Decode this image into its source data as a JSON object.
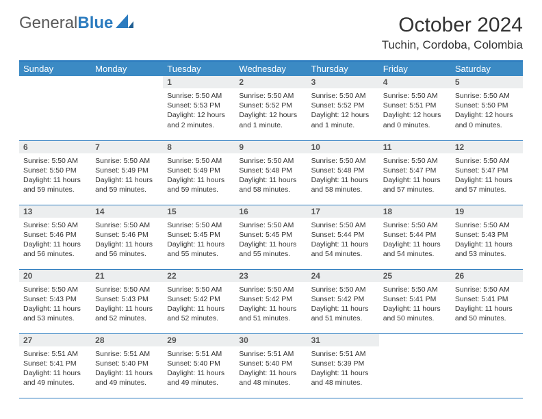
{
  "logo": {
    "word1": "General",
    "word2": "Blue"
  },
  "title": "October 2024",
  "location": "Tuchin, Cordoba, Colombia",
  "colors": {
    "header_bg": "#3b8ac4",
    "header_text": "#ffffff",
    "daynum_bg": "#eceeef",
    "border": "#2b7bbf",
    "page_bg": "#ffffff",
    "text": "#333333"
  },
  "day_names": [
    "Sunday",
    "Monday",
    "Tuesday",
    "Wednesday",
    "Thursday",
    "Friday",
    "Saturday"
  ],
  "weeks": [
    [
      null,
      null,
      {
        "n": "1",
        "sr": "5:50 AM",
        "ss": "5:53 PM",
        "dl": "12 hours and 2 minutes."
      },
      {
        "n": "2",
        "sr": "5:50 AM",
        "ss": "5:52 PM",
        "dl": "12 hours and 1 minute."
      },
      {
        "n": "3",
        "sr": "5:50 AM",
        "ss": "5:52 PM",
        "dl": "12 hours and 1 minute."
      },
      {
        "n": "4",
        "sr": "5:50 AM",
        "ss": "5:51 PM",
        "dl": "12 hours and 0 minutes."
      },
      {
        "n": "5",
        "sr": "5:50 AM",
        "ss": "5:50 PM",
        "dl": "12 hours and 0 minutes."
      }
    ],
    [
      {
        "n": "6",
        "sr": "5:50 AM",
        "ss": "5:50 PM",
        "dl": "11 hours and 59 minutes."
      },
      {
        "n": "7",
        "sr": "5:50 AM",
        "ss": "5:49 PM",
        "dl": "11 hours and 59 minutes."
      },
      {
        "n": "8",
        "sr": "5:50 AM",
        "ss": "5:49 PM",
        "dl": "11 hours and 59 minutes."
      },
      {
        "n": "9",
        "sr": "5:50 AM",
        "ss": "5:48 PM",
        "dl": "11 hours and 58 minutes."
      },
      {
        "n": "10",
        "sr": "5:50 AM",
        "ss": "5:48 PM",
        "dl": "11 hours and 58 minutes."
      },
      {
        "n": "11",
        "sr": "5:50 AM",
        "ss": "5:47 PM",
        "dl": "11 hours and 57 minutes."
      },
      {
        "n": "12",
        "sr": "5:50 AM",
        "ss": "5:47 PM",
        "dl": "11 hours and 57 minutes."
      }
    ],
    [
      {
        "n": "13",
        "sr": "5:50 AM",
        "ss": "5:46 PM",
        "dl": "11 hours and 56 minutes."
      },
      {
        "n": "14",
        "sr": "5:50 AM",
        "ss": "5:46 PM",
        "dl": "11 hours and 56 minutes."
      },
      {
        "n": "15",
        "sr": "5:50 AM",
        "ss": "5:45 PM",
        "dl": "11 hours and 55 minutes."
      },
      {
        "n": "16",
        "sr": "5:50 AM",
        "ss": "5:45 PM",
        "dl": "11 hours and 55 minutes."
      },
      {
        "n": "17",
        "sr": "5:50 AM",
        "ss": "5:44 PM",
        "dl": "11 hours and 54 minutes."
      },
      {
        "n": "18",
        "sr": "5:50 AM",
        "ss": "5:44 PM",
        "dl": "11 hours and 54 minutes."
      },
      {
        "n": "19",
        "sr": "5:50 AM",
        "ss": "5:43 PM",
        "dl": "11 hours and 53 minutes."
      }
    ],
    [
      {
        "n": "20",
        "sr": "5:50 AM",
        "ss": "5:43 PM",
        "dl": "11 hours and 53 minutes."
      },
      {
        "n": "21",
        "sr": "5:50 AM",
        "ss": "5:43 PM",
        "dl": "11 hours and 52 minutes."
      },
      {
        "n": "22",
        "sr": "5:50 AM",
        "ss": "5:42 PM",
        "dl": "11 hours and 52 minutes."
      },
      {
        "n": "23",
        "sr": "5:50 AM",
        "ss": "5:42 PM",
        "dl": "11 hours and 51 minutes."
      },
      {
        "n": "24",
        "sr": "5:50 AM",
        "ss": "5:42 PM",
        "dl": "11 hours and 51 minutes."
      },
      {
        "n": "25",
        "sr": "5:50 AM",
        "ss": "5:41 PM",
        "dl": "11 hours and 50 minutes."
      },
      {
        "n": "26",
        "sr": "5:50 AM",
        "ss": "5:41 PM",
        "dl": "11 hours and 50 minutes."
      }
    ],
    [
      {
        "n": "27",
        "sr": "5:51 AM",
        "ss": "5:41 PM",
        "dl": "11 hours and 49 minutes."
      },
      {
        "n": "28",
        "sr": "5:51 AM",
        "ss": "5:40 PM",
        "dl": "11 hours and 49 minutes."
      },
      {
        "n": "29",
        "sr": "5:51 AM",
        "ss": "5:40 PM",
        "dl": "11 hours and 49 minutes."
      },
      {
        "n": "30",
        "sr": "5:51 AM",
        "ss": "5:40 PM",
        "dl": "11 hours and 48 minutes."
      },
      {
        "n": "31",
        "sr": "5:51 AM",
        "ss": "5:39 PM",
        "dl": "11 hours and 48 minutes."
      },
      null,
      null
    ]
  ],
  "labels": {
    "sunrise": "Sunrise:",
    "sunset": "Sunset:",
    "daylight": "Daylight:"
  }
}
